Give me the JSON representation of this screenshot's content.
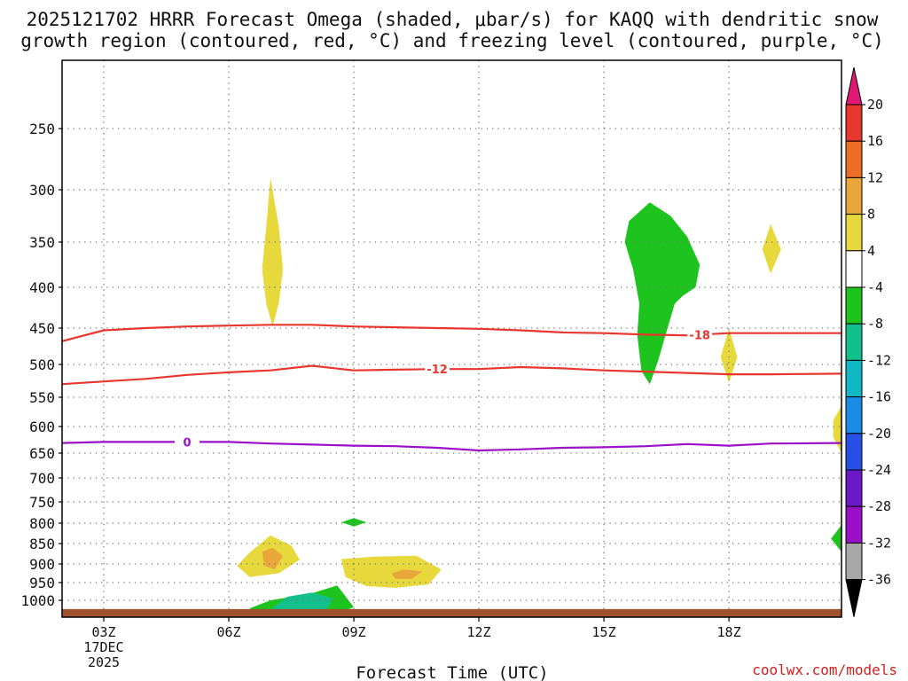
{
  "title": {
    "line1": "2025121702 HRRR Forecast Omega (shaded, μbar/s) for KAQQ with dendritic snow",
    "line2": "growth region (contoured, red, °C) and freezing level (contoured, purple, °C)"
  },
  "credit": "coolwx.com/models",
  "chart_data": {
    "type": "time-height cross section",
    "x_axis": {
      "label": "Forecast Time (UTC)",
      "range_hours_utc": [
        2,
        20.7
      ],
      "ticks": [
        {
          "hour": 3,
          "label": "03Z",
          "sub": [
            "17DEC",
            "2025"
          ]
        },
        {
          "hour": 6,
          "label": "06Z"
        },
        {
          "hour": 9,
          "label": "09Z"
        },
        {
          "hour": 12,
          "label": "12Z"
        },
        {
          "hour": 15,
          "label": "15Z"
        },
        {
          "hour": 18,
          "label": "18Z"
        }
      ]
    },
    "y_axis": {
      "units": "hPa",
      "inverted": true,
      "range": [
        1025,
        200
      ],
      "ticks": [
        250,
        300,
        350,
        400,
        450,
        500,
        550,
        600,
        650,
        700,
        750,
        800,
        850,
        900,
        950,
        1000
      ]
    },
    "grid": "dotted",
    "contours": [
      {
        "name": "-18",
        "color": "#e8362e",
        "label_at_hour": 17.3,
        "points": [
          [
            2,
            468
          ],
          [
            3,
            453
          ],
          [
            4,
            450
          ],
          [
            5,
            448
          ],
          [
            6,
            447
          ],
          [
            7,
            446
          ],
          [
            8,
            446
          ],
          [
            9,
            448
          ],
          [
            10,
            449
          ],
          [
            11,
            450
          ],
          [
            12,
            451
          ],
          [
            13,
            453
          ],
          [
            14,
            456
          ],
          [
            15,
            457
          ],
          [
            16,
            459
          ],
          [
            17,
            460
          ],
          [
            18,
            457
          ],
          [
            19,
            457
          ],
          [
            20.7,
            457
          ]
        ]
      },
      {
        "name": "-12",
        "color": "#e8362e",
        "label_at_hour": 11,
        "points": [
          [
            2,
            530
          ],
          [
            3,
            526
          ],
          [
            4,
            522
          ],
          [
            5,
            516
          ],
          [
            6,
            512
          ],
          [
            7,
            509
          ],
          [
            8,
            502
          ],
          [
            9,
            509
          ],
          [
            10,
            508
          ],
          [
            11,
            507
          ],
          [
            12,
            507
          ],
          [
            13,
            504
          ],
          [
            14,
            506
          ],
          [
            15,
            509
          ],
          [
            16,
            511
          ],
          [
            17,
            513
          ],
          [
            18,
            515
          ],
          [
            19,
            515
          ],
          [
            20.7,
            514
          ]
        ]
      },
      {
        "name": "0",
        "color": "#9a10c8",
        "label_at_hour": 5,
        "points": [
          [
            2,
            631
          ],
          [
            3,
            629
          ],
          [
            4,
            629
          ],
          [
            5,
            629
          ],
          [
            6,
            629
          ],
          [
            7,
            632
          ],
          [
            8,
            634
          ],
          [
            9,
            636
          ],
          [
            10,
            637
          ],
          [
            11,
            640
          ],
          [
            12,
            645
          ],
          [
            13,
            643
          ],
          [
            14,
            640
          ],
          [
            15,
            639
          ],
          [
            16,
            637
          ],
          [
            17,
            633
          ],
          [
            18,
            636
          ],
          [
            19,
            632
          ],
          [
            20.7,
            631
          ]
        ]
      }
    ],
    "shaded_regions": [
      {
        "level": 4,
        "points": [
          [
            7,
            290
          ],
          [
            7.2,
            335
          ],
          [
            7.3,
            380
          ],
          [
            7.2,
            420
          ],
          [
            7.05,
            448
          ],
          [
            6.9,
            420
          ],
          [
            6.8,
            380
          ],
          [
            6.9,
            335
          ]
        ]
      },
      {
        "level": -4,
        "points": [
          [
            16.1,
            312
          ],
          [
            16.6,
            325
          ],
          [
            17,
            345
          ],
          [
            17.3,
            375
          ],
          [
            17.2,
            400
          ],
          [
            16.9,
            410
          ],
          [
            16.7,
            420
          ],
          [
            16.5,
            455
          ],
          [
            16.3,
            495
          ],
          [
            16.1,
            530
          ],
          [
            15.9,
            510
          ],
          [
            15.8,
            460
          ],
          [
            15.85,
            420
          ],
          [
            15.7,
            380
          ],
          [
            15.5,
            350
          ],
          [
            15.6,
            330
          ]
        ]
      },
      {
        "level": 4,
        "points": [
          [
            19,
            333
          ],
          [
            19.25,
            358
          ],
          [
            19,
            385
          ],
          [
            18.8,
            358
          ]
        ]
      },
      {
        "level": 4,
        "points": [
          [
            18,
            450
          ],
          [
            18.2,
            490
          ],
          [
            18,
            528
          ],
          [
            17.8,
            490
          ]
        ]
      },
      {
        "level": 4,
        "points": [
          [
            20.7,
            565
          ],
          [
            20.7,
            650
          ],
          [
            20.5,
            620
          ],
          [
            20.5,
            590
          ]
        ]
      },
      {
        "level": -4,
        "points": [
          [
            8.7,
            798
          ],
          [
            9,
            788
          ],
          [
            9.3,
            798
          ],
          [
            9,
            808
          ]
        ]
      },
      {
        "level": -4,
        "points": [
          [
            20.7,
            805
          ],
          [
            20.7,
            870
          ],
          [
            20.45,
            838
          ]
        ]
      },
      {
        "level": 4,
        "points": [
          [
            6.2,
            905
          ],
          [
            6.5,
            872
          ],
          [
            7,
            830
          ],
          [
            7.5,
            855
          ],
          [
            7.7,
            890
          ],
          [
            7.2,
            925
          ],
          [
            6.5,
            935
          ]
        ]
      },
      {
        "level": 8,
        "points": [
          [
            6.8,
            870
          ],
          [
            7.05,
            860
          ],
          [
            7.3,
            880
          ],
          [
            7.1,
            915
          ],
          [
            6.85,
            905
          ]
        ]
      },
      {
        "level": 4,
        "points": [
          [
            8.7,
            888
          ],
          [
            9.5,
            882
          ],
          [
            10.5,
            880
          ],
          [
            11.1,
            915
          ],
          [
            10.8,
            955
          ],
          [
            10,
            965
          ],
          [
            9.3,
            960
          ],
          [
            8.8,
            935
          ]
        ]
      },
      {
        "level": 8,
        "points": [
          [
            9.9,
            925
          ],
          [
            10.2,
            915
          ],
          [
            10.65,
            920
          ],
          [
            10.4,
            940
          ],
          [
            10.0,
            940
          ]
        ]
      },
      {
        "level": -4,
        "points": [
          [
            6.5,
            1012
          ],
          [
            7,
            1000
          ],
          [
            7.6,
            988
          ],
          [
            8,
            980
          ],
          [
            8.6,
            958
          ],
          [
            9.0,
            1010
          ],
          [
            8.6,
            1020
          ],
          [
            7.5,
            1023
          ],
          [
            6.7,
            1022
          ]
        ]
      },
      {
        "level": -8,
        "points": [
          [
            7.0,
            1014
          ],
          [
            7.4,
            990
          ],
          [
            8,
            978
          ],
          [
            8.5,
            995
          ],
          [
            8.3,
            1018
          ],
          [
            7.5,
            1022
          ]
        ]
      }
    ],
    "ground": {
      "color": "#a0522d",
      "from_hPa": 1013
    }
  },
  "colorbar": {
    "labels": [
      "20",
      "16",
      "12",
      "8",
      "4",
      "-4",
      "-8",
      "-12",
      "-16",
      "-20",
      "-24",
      "-28",
      "-32",
      "-36"
    ],
    "colors": [
      "#e8382e",
      "#ec6d25",
      "#e9a63a",
      "#e7d93b",
      "#ffffff",
      "#1ec41e",
      "#12c08c",
      "#10b8c6",
      "#1a8ce6",
      "#2650e6",
      "#6a18c8",
      "#9a10c8",
      "#a8a8a8"
    ],
    "top_arrow_color": "#e01875",
    "bottom_arrow_color": "#000000"
  },
  "shade_levels": {
    "4": "#e7d93b",
    "8": "#e9a63a",
    "-4": "#1ec41e",
    "-8": "#12c08c"
  }
}
